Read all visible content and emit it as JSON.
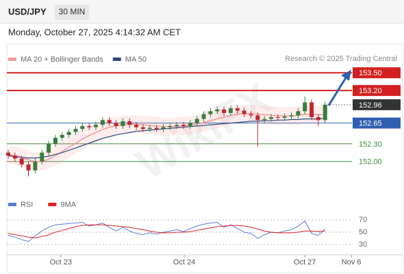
{
  "chart_data": {
    "type": "candlestick",
    "symbol": "USD/JPY",
    "timeframe": "30 MIN",
    "subtitle": "Monday, October 27, 2025 4:14:32 AM CET",
    "source": "Research © 2025 Trading Central",
    "watermark": "WikiFX",
    "xlim": [
      0,
      52
    ],
    "xticks": [
      {
        "value": 7.8,
        "label": "Oct 23"
      },
      {
        "value": 26.1,
        "label": "Oct 24"
      },
      {
        "value": 44,
        "label": "Oct 27"
      },
      {
        "value": 50.9,
        "label": "Nov 6"
      }
    ],
    "ylim": [
      151.43,
      153.63
    ],
    "up_color": "#3a7d3a",
    "down_color": "#c0262d",
    "candles": {
      "open": [
        152.15,
        152.1,
        152.05,
        151.95,
        151.85,
        152.0,
        152.15,
        152.3,
        152.4,
        152.45,
        152.5,
        152.55,
        152.6,
        152.58,
        152.62,
        152.7,
        152.65,
        152.6,
        152.68,
        152.62,
        152.58,
        152.55,
        152.57,
        152.55,
        152.58,
        152.6,
        152.62,
        152.6,
        152.65,
        152.72,
        152.8,
        152.85,
        152.88,
        152.82,
        152.9,
        152.86,
        152.8,
        152.78,
        152.7,
        152.72,
        152.75,
        152.74,
        152.76,
        152.78,
        152.85,
        153.0,
        152.75,
        152.7
      ],
      "high": [
        152.2,
        152.15,
        152.1,
        152.0,
        152.05,
        152.2,
        152.35,
        152.45,
        152.5,
        152.55,
        152.6,
        152.65,
        152.65,
        152.67,
        152.75,
        152.75,
        152.7,
        152.73,
        152.73,
        152.67,
        152.63,
        152.62,
        152.62,
        152.63,
        152.65,
        152.67,
        152.67,
        152.7,
        152.77,
        152.85,
        152.9,
        152.93,
        152.93,
        152.95,
        152.95,
        152.91,
        152.85,
        152.83,
        152.77,
        152.8,
        152.8,
        152.81,
        152.83,
        152.9,
        153.1,
        153.05,
        152.8,
        153.01
      ],
      "low": [
        152.05,
        152.0,
        151.9,
        151.75,
        151.8,
        151.95,
        152.1,
        152.25,
        152.35,
        152.4,
        152.45,
        152.5,
        152.53,
        152.53,
        152.57,
        152.6,
        152.55,
        152.55,
        152.57,
        152.53,
        152.5,
        152.5,
        152.5,
        152.5,
        152.53,
        152.55,
        152.55,
        152.55,
        152.6,
        152.67,
        152.75,
        152.8,
        152.77,
        152.77,
        152.81,
        152.75,
        152.73,
        152.25,
        152.65,
        152.67,
        152.69,
        152.69,
        152.71,
        152.73,
        152.8,
        152.7,
        152.6,
        152.65
      ],
      "close": [
        152.1,
        152.05,
        151.95,
        151.85,
        152.0,
        152.15,
        152.3,
        152.4,
        152.45,
        152.5,
        152.55,
        152.6,
        152.58,
        152.62,
        152.7,
        152.65,
        152.6,
        152.68,
        152.62,
        152.58,
        152.55,
        152.57,
        152.55,
        152.58,
        152.6,
        152.62,
        152.6,
        152.65,
        152.72,
        152.8,
        152.85,
        152.88,
        152.82,
        152.9,
        152.86,
        152.8,
        152.78,
        152.7,
        152.72,
        152.75,
        152.74,
        152.76,
        152.78,
        152.85,
        153.0,
        152.75,
        152.7,
        152.96
      ]
    },
    "series": [
      {
        "name": "MA 20 + Bollinger Bands",
        "color": "#f29a9a",
        "values": [
          152.12,
          152.1,
          152.07,
          152.03,
          152.0,
          152.0,
          152.04,
          152.1,
          152.17,
          152.24,
          152.31,
          152.38,
          152.44,
          152.49,
          152.54,
          152.58,
          152.6,
          152.62,
          152.63,
          152.63,
          152.62,
          152.61,
          152.6,
          152.59,
          152.59,
          152.59,
          152.6,
          152.61,
          152.63,
          152.66,
          152.69,
          152.72,
          152.75,
          152.78,
          152.8,
          152.81,
          152.81,
          152.8,
          152.79,
          152.78,
          152.77,
          152.77,
          152.77,
          152.78,
          152.8,
          152.8,
          152.79,
          152.8
        ]
      },
      {
        "name": "MA 50",
        "color": "#2b4a7e",
        "values": [
          152.1,
          152.08,
          152.07,
          152.06,
          152.06,
          152.07,
          152.09,
          152.12,
          152.15,
          152.19,
          152.23,
          152.27,
          152.31,
          152.35,
          152.39,
          152.42,
          152.45,
          152.47,
          152.49,
          152.51,
          152.52,
          152.53,
          152.54,
          152.55,
          152.56,
          152.57,
          152.58,
          152.59,
          152.6,
          152.61,
          152.62,
          152.63,
          152.64,
          152.65,
          152.66,
          152.67,
          152.68,
          152.68,
          152.69,
          152.69,
          152.7,
          152.7,
          152.71,
          152.71,
          152.72,
          152.72,
          152.72,
          152.73
        ]
      }
    ],
    "levels": [
      {
        "value": 153.5,
        "label": "153.50",
        "color": "#d42020",
        "boxed": true
      },
      {
        "value": 153.2,
        "label": "153.20",
        "color": "#d42020",
        "boxed": true
      },
      {
        "value": 152.96,
        "label": "152.96",
        "color": "#333333",
        "boxed": true
      },
      {
        "value": 152.65,
        "label": "152.65",
        "color": "#2f5fb0",
        "boxed": true
      },
      {
        "value": 152.3,
        "label": "152.30",
        "color": "#3a8a3a",
        "boxed": false
      },
      {
        "value": 152,
        "label": "152.00",
        "color": "#3a8a3a",
        "boxed": false
      }
    ],
    "rsi": {
      "ylim": [
        15.5,
        82.2
      ],
      "yticks": [
        70,
        50,
        30
      ],
      "series": [
        {
          "name": "RSI",
          "color": "#5a78d8",
          "values": [
            45,
            42,
            38,
            35,
            44,
            52,
            58,
            62,
            63,
            64,
            65,
            66,
            60,
            62,
            65,
            58,
            52,
            58,
            52,
            48,
            46,
            49,
            47,
            50,
            52,
            54,
            51,
            56,
            60,
            63,
            65,
            66,
            58,
            62,
            56,
            50,
            48,
            40,
            46,
            50,
            49,
            52,
            54,
            60,
            68,
            48,
            45,
            55
          ]
        },
        {
          "name": "9MA",
          "color": "#e02020",
          "values": [
            48,
            46,
            44,
            42,
            41,
            43,
            46,
            50,
            53,
            56,
            59,
            61,
            62,
            62,
            62,
            61,
            60,
            59,
            58,
            56,
            54,
            52,
            50,
            49,
            49,
            50,
            50,
            51,
            53,
            55,
            57,
            59,
            60,
            61,
            61,
            60,
            58,
            55,
            52,
            50,
            49,
            49,
            49,
            50,
            52,
            52,
            51,
            52
          ]
        }
      ]
    }
  }
}
